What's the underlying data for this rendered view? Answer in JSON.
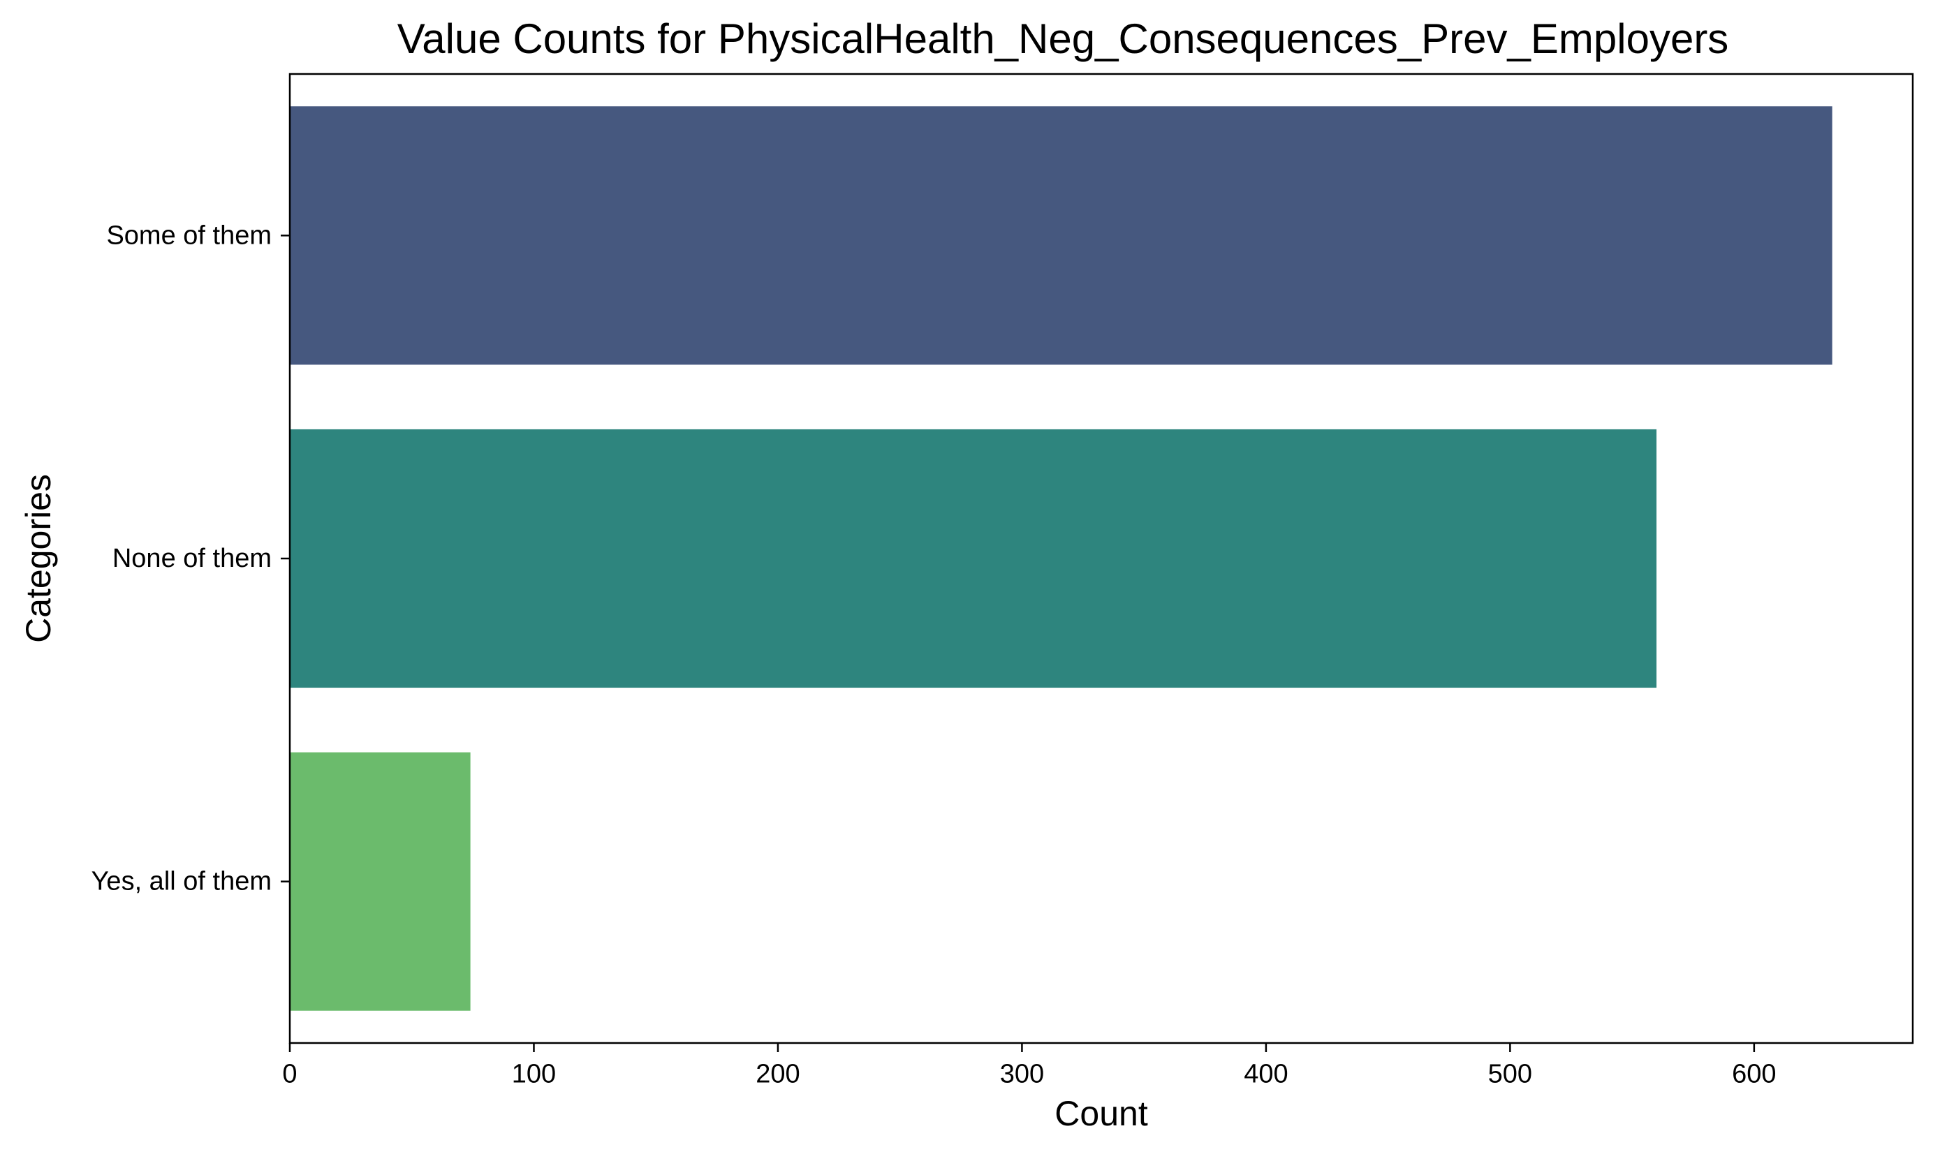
{
  "chart_data": {
    "type": "bar",
    "orientation": "horizontal",
    "title": "Value Counts for PhysicalHealth_Neg_Consequences_Prev_Employers",
    "xlabel": "Count",
    "ylabel": "Categories",
    "categories": [
      "Some of them",
      "None of them",
      "Yes, all of them"
    ],
    "values": [
      632,
      560,
      74
    ],
    "colors": [
      "#46587f",
      "#2e857e",
      "#6bbb6c"
    ],
    "xlim": [
      0,
      665
    ],
    "xticks": [
      0,
      100,
      200,
      300,
      400,
      500,
      600
    ],
    "grid": false,
    "legend": false
  }
}
